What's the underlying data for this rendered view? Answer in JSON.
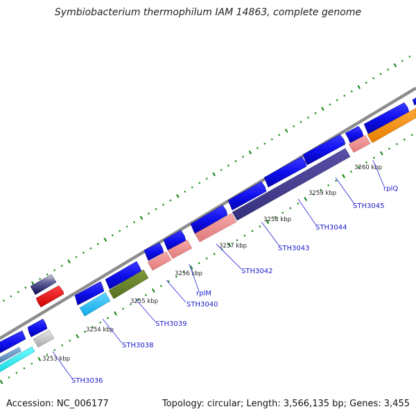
{
  "title": "Symbiobacterium thermophilum IAM 14863, complete genome",
  "footer": {
    "accession": "Accession: NC_006177",
    "summary": "Topology: circular; Length: 3,566,135 bp; Genes: 3,455"
  },
  "colors": {
    "backbone": "#8c8c8c",
    "forward_gene": "#1010ee",
    "tick_dots": "#1e8a1e",
    "label_text": "#1a1acc",
    "label_line": "#3333dd"
  },
  "kbp_ticks": [
    {
      "label": "3253 kbp"
    },
    {
      "label": "3254 kbp"
    },
    {
      "label": "3255 kbp"
    },
    {
      "label": "3256 kbp"
    },
    {
      "label": "3257 kbp"
    },
    {
      "label": "3258 kbp"
    },
    {
      "label": "3259 kbp"
    },
    {
      "label": "3260 kbp"
    }
  ],
  "gene_labels": [
    {
      "text": "STH3036"
    },
    {
      "text": "STH3038"
    },
    {
      "text": "STH3039"
    },
    {
      "text": "STH3040"
    },
    {
      "text": "rplM"
    },
    {
      "text": "STH3042"
    },
    {
      "text": "STH3043"
    },
    {
      "text": "STH3044"
    },
    {
      "text": "STH3045"
    },
    {
      "text": "rplQ"
    }
  ]
}
